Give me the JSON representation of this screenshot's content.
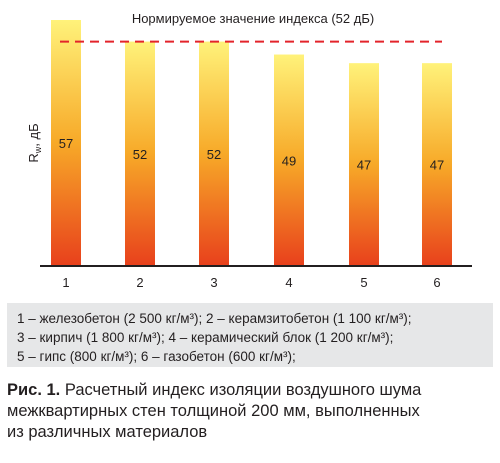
{
  "chart_data": {
    "type": "bar",
    "categories": [
      "1",
      "2",
      "3",
      "4",
      "5",
      "6"
    ],
    "values": [
      57,
      52,
      52,
      49,
      47,
      47
    ],
    "value_labels": [
      "57",
      "52",
      "52",
      "49",
      "47",
      "47"
    ],
    "title": "",
    "ylabel": "Rw, дБ",
    "xlabel": "",
    "ylim": [
      0,
      57
    ],
    "grid": false,
    "reference_line": {
      "value": 52,
      "label": "Нормируемое значение индекса (52 дБ)",
      "color": "#e3242b",
      "style": "dashed"
    },
    "bar_gradient": {
      "top": "#fff27a",
      "bottom": "#e8401c"
    }
  },
  "legend": {
    "lines": [
      "1 – железобетон (2 500 кг/м³); 2 – керамзитобетон (1 100 кг/м³);",
      "3 – кирпич (1 800 кг/м³); 4 – керамический блок (1 200 кг/м³);",
      "5 – гипс (800 кг/м³); 6 – газобетон (600 кг/м³);"
    ]
  },
  "caption": {
    "label": "Рис. 1.",
    "line1": "Расчетный индекс изоляции воздушного шума",
    "line2": "межквартирных стен толщиной 200 мм, выполненных",
    "line3": "из различных материалов"
  }
}
